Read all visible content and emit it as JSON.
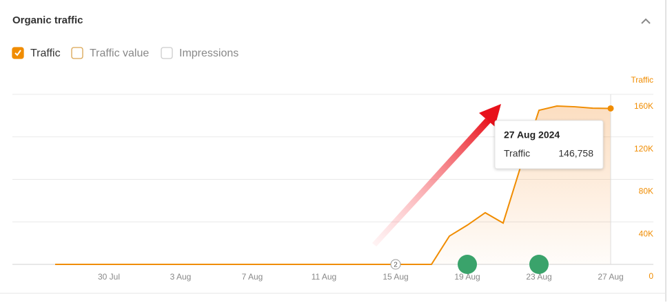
{
  "header": {
    "title": "Organic traffic"
  },
  "toggles": [
    {
      "label": "Traffic",
      "checked": true
    },
    {
      "label": "Traffic value",
      "checked": false
    },
    {
      "label": "Impressions",
      "checked": false
    }
  ],
  "chart_data": {
    "type": "area-line",
    "y_axis_title": "Traffic",
    "categories": [
      null,
      null,
      null,
      "30 Jul",
      null,
      null,
      null,
      "3 Aug",
      null,
      null,
      null,
      "7 Aug",
      null,
      null,
      null,
      "11 Aug",
      null,
      null,
      null,
      "15 Aug",
      null,
      null,
      null,
      "19 Aug",
      null,
      null,
      null,
      "23 Aug",
      null,
      null,
      null,
      "27 Aug"
    ],
    "series": [
      {
        "name": "Traffic",
        "color": "#f08c00",
        "values": [
          0,
          0,
          0,
          0,
          0,
          0,
          0,
          0,
          0,
          0,
          0,
          0,
          0,
          0,
          0,
          0,
          0,
          0,
          0,
          0,
          0,
          0,
          26600,
          36900,
          48600,
          38900,
          93300,
          145000,
          149000,
          148300,
          147000,
          146758
        ]
      }
    ],
    "ylim": [
      0,
      160000
    ],
    "yticks": [
      0,
      {
        "value": 40000,
        "label": "40K"
      },
      {
        "value": 80000,
        "label": "80K"
      },
      {
        "value": 120000,
        "label": "120K"
      },
      {
        "value": 160000,
        "label": "160K"
      }
    ],
    "grid": true,
    "markers": [
      {
        "category": "15 Aug",
        "label": "2",
        "color": "#ffffff"
      },
      {
        "category": "19 Aug",
        "color": "#3aa36b"
      },
      {
        "category": "23 Aug",
        "color": "#3aa36b"
      }
    ],
    "tooltip": {
      "title": "27 Aug 2024",
      "value_label": "146,758"
    }
  }
}
